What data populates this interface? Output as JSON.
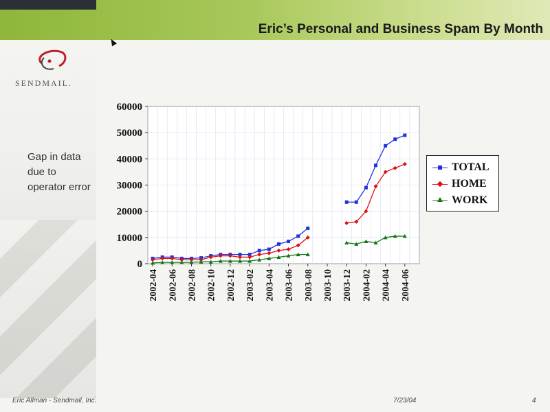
{
  "slide": {
    "title": "Eric’s Personal and Business Spam By Month",
    "logo_text": "SENDMAIL.",
    "note": "Gap in data due to operator error",
    "footer_left": "Eric Allman - Sendmail, Inc.",
    "footer_date": "7/23/04",
    "footer_page": "4"
  },
  "colors": {
    "total": "#2233dd",
    "home": "#dd1111",
    "work": "#117711"
  },
  "chart_data": {
    "type": "line",
    "title": "",
    "xlabel": "",
    "ylabel": "",
    "ylim": [
      0,
      60000
    ],
    "yticks": [
      "60000",
      "50000",
      "40000",
      "30000",
      "20000",
      "10000",
      "0"
    ],
    "ytick_values": [
      60000,
      50000,
      40000,
      30000,
      20000,
      10000,
      0
    ],
    "x_tick_labels": [
      "2002-04",
      "2002-06",
      "2002-08",
      "2002-10",
      "2002-12",
      "2003-02",
      "2003-04",
      "2003-06",
      "2003-08",
      "2003-10",
      "2003-12",
      "2004-02",
      "2004-04",
      "2004-06"
    ],
    "x": [
      "2002-04",
      "2002-05",
      "2002-06",
      "2002-07",
      "2002-08",
      "2002-09",
      "2002-10",
      "2002-11",
      "2002-12",
      "2003-01",
      "2003-02",
      "2003-03",
      "2003-04",
      "2003-05",
      "2003-06",
      "2003-07",
      "2003-08",
      "2003-09",
      "2003-10",
      "2003-11",
      "2003-12",
      "2004-01",
      "2004-02",
      "2004-03",
      "2004-04",
      "2004-05",
      "2004-06",
      "2004-07"
    ],
    "legend_position": "right",
    "grid": true,
    "series": [
      {
        "name": "TOTAL",
        "color_key": "total",
        "marker": "square",
        "values": [
          2000,
          2500,
          2500,
          2000,
          2000,
          2200,
          3000,
          3500,
          3500,
          3500,
          3500,
          5000,
          5500,
          7500,
          8500,
          10500,
          13500,
          null,
          null,
          null,
          23500,
          23500,
          29000,
          37500,
          45000,
          47500,
          49000,
          null
        ]
      },
      {
        "name": "HOME",
        "color_key": "home",
        "marker": "diamond",
        "values": [
          1500,
          2000,
          2000,
          1500,
          1500,
          1500,
          2500,
          3000,
          3000,
          2500,
          2500,
          3500,
          4000,
          5000,
          5500,
          7000,
          10000,
          null,
          null,
          null,
          15500,
          16000,
          20000,
          29500,
          35000,
          36500,
          38000,
          null
        ]
      },
      {
        "name": "WORK",
        "color_key": "work",
        "marker": "triangle",
        "values": [
          300,
          500,
          500,
          500,
          500,
          700,
          700,
          1000,
          1000,
          1000,
          1000,
          1500,
          2000,
          2500,
          3000,
          3500,
          3500,
          null,
          null,
          null,
          8000,
          7500,
          8500,
          8000,
          10000,
          10500,
          10500,
          null
        ]
      }
    ]
  }
}
